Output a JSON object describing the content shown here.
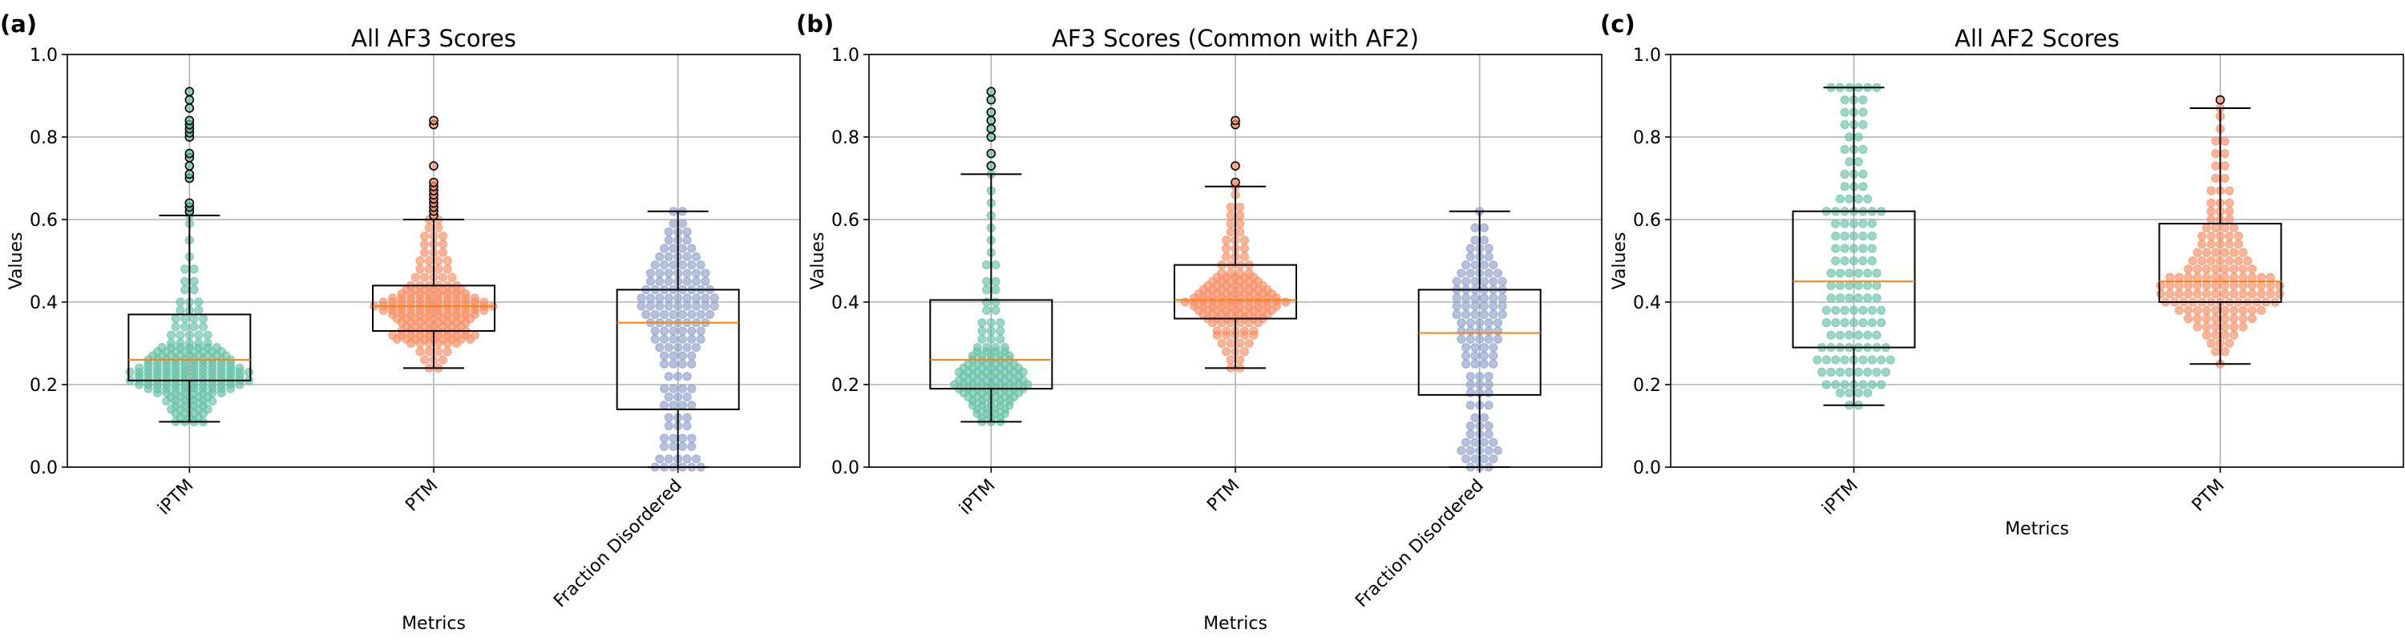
{
  "chart_data": [
    {
      "panel_label": "(a)",
      "type": "box+swarm",
      "title": "All AF3 Scores",
      "xlabel": "Metrics",
      "ylabel": "Values",
      "ylim": [
        0.0,
        1.0
      ],
      "yticks": [
        "0.0",
        "0.2",
        "0.4",
        "0.6",
        "0.8",
        "1.0"
      ],
      "grid": true,
      "xtick_rotation": -45,
      "categories": [
        "iPTM",
        "PTM",
        "Fraction Disordered"
      ],
      "series": [
        {
          "name": "iPTM",
          "color": "#66c2a5",
          "box": {
            "min": 0.11,
            "q1": 0.21,
            "median": 0.26,
            "q3": 0.37,
            "max": 0.61
          },
          "outliers": [
            0.62,
            0.63,
            0.64,
            0.7,
            0.71,
            0.73,
            0.75,
            0.76,
            0.8,
            0.81,
            0.82,
            0.83,
            0.84,
            0.87,
            0.89,
            0.91
          ],
          "points": [
            0.11,
            0.12,
            0.13,
            0.14,
            0.15,
            0.16,
            0.17,
            0.18,
            0.19,
            0.2,
            0.21,
            0.22,
            0.23,
            0.24,
            0.25,
            0.26,
            0.27,
            0.28,
            0.29,
            0.3,
            0.32,
            0.34,
            0.36,
            0.38,
            0.4,
            0.43,
            0.45,
            0.48,
            0.51,
            0.55,
            0.59,
            0.61
          ],
          "density": [
            4,
            3,
            4,
            5,
            4,
            6,
            5,
            8,
            10,
            12,
            14,
            12,
            14,
            12,
            10,
            10,
            9,
            8,
            7,
            5,
            5,
            4,
            4,
            3,
            3,
            2,
            2,
            2,
            1,
            1,
            1,
            1
          ]
        },
        {
          "name": "PTM",
          "color": "#fc8d62",
          "box": {
            "min": 0.24,
            "q1": 0.33,
            "median": 0.39,
            "q3": 0.44,
            "max": 0.6
          },
          "outliers": [
            0.61,
            0.62,
            0.63,
            0.64,
            0.65,
            0.66,
            0.67,
            0.68,
            0.69,
            0.73,
            0.83,
            0.84
          ],
          "points": [
            0.24,
            0.26,
            0.28,
            0.3,
            0.31,
            0.32,
            0.33,
            0.34,
            0.35,
            0.36,
            0.37,
            0.38,
            0.39,
            0.4,
            0.41,
            0.42,
            0.43,
            0.44,
            0.46,
            0.48,
            0.5,
            0.52,
            0.54,
            0.56,
            0.58,
            0.6
          ],
          "density": [
            2,
            3,
            4,
            6,
            9,
            10,
            8,
            7,
            8,
            9,
            10,
            12,
            14,
            12,
            10,
            8,
            7,
            6,
            5,
            4,
            4,
            3,
            3,
            3,
            2,
            2
          ]
        },
        {
          "name": "Fraction Disordered",
          "color": "#8da0cb",
          "box": {
            "min": 0.0,
            "q1": 0.14,
            "median": 0.35,
            "q3": 0.43,
            "max": 0.62
          },
          "outliers": [],
          "points": [
            0.0,
            0.02,
            0.05,
            0.07,
            0.1,
            0.12,
            0.15,
            0.17,
            0.19,
            0.22,
            0.25,
            0.27,
            0.29,
            0.31,
            0.33,
            0.35,
            0.37,
            0.39,
            0.41,
            0.43,
            0.45,
            0.47,
            0.49,
            0.51,
            0.53,
            0.55,
            0.57,
            0.59,
            0.62
          ],
          "density": [
            6,
            5,
            4,
            4,
            3,
            3,
            4,
            3,
            4,
            3,
            4,
            4,
            5,
            6,
            6,
            7,
            8,
            9,
            9,
            8,
            7,
            7,
            6,
            5,
            4,
            3,
            3,
            2,
            2
          ]
        }
      ]
    },
    {
      "panel_label": "(b)",
      "type": "box+swarm",
      "title": "AF3 Scores (Common with AF2)",
      "xlabel": "Metrics",
      "ylabel": "Values",
      "ylim": [
        0.0,
        1.0
      ],
      "yticks": [
        "0.0",
        "0.2",
        "0.4",
        "0.6",
        "0.8",
        "1.0"
      ],
      "grid": true,
      "xtick_rotation": -45,
      "categories": [
        "iPTM",
        "PTM",
        "Fraction Disordered"
      ],
      "series": [
        {
          "name": "iPTM",
          "color": "#66c2a5",
          "box": {
            "min": 0.11,
            "q1": 0.19,
            "median": 0.26,
            "q3": 0.405,
            "max": 0.71
          },
          "outliers": [
            0.73,
            0.76,
            0.8,
            0.82,
            0.84,
            0.86,
            0.89,
            0.91
          ],
          "points": [
            0.11,
            0.12,
            0.13,
            0.14,
            0.15,
            0.16,
            0.17,
            0.18,
            0.19,
            0.2,
            0.21,
            0.22,
            0.23,
            0.24,
            0.25,
            0.26,
            0.27,
            0.28,
            0.29,
            0.31,
            0.33,
            0.35,
            0.38,
            0.4,
            0.43,
            0.45,
            0.49,
            0.52,
            0.55,
            0.58,
            0.61,
            0.64,
            0.67,
            0.71
          ],
          "density": [
            3,
            3,
            4,
            4,
            5,
            5,
            6,
            7,
            8,
            9,
            8,
            7,
            8,
            7,
            6,
            5,
            5,
            4,
            4,
            3,
            3,
            3,
            2,
            2,
            2,
            2,
            2,
            1,
            1,
            1,
            1,
            1,
            1,
            1
          ]
        },
        {
          "name": "PTM",
          "color": "#fc8d62",
          "box": {
            "min": 0.24,
            "q1": 0.36,
            "median": 0.405,
            "q3": 0.49,
            "max": 0.68
          },
          "outliers": [
            0.69,
            0.73,
            0.83,
            0.84
          ],
          "points": [
            0.24,
            0.26,
            0.28,
            0.3,
            0.32,
            0.33,
            0.35,
            0.36,
            0.37,
            0.38,
            0.39,
            0.4,
            0.41,
            0.42,
            0.43,
            0.44,
            0.45,
            0.46,
            0.47,
            0.49,
            0.51,
            0.53,
            0.55,
            0.57,
            0.59,
            0.61,
            0.63,
            0.66,
            0.68
          ],
          "density": [
            2,
            2,
            3,
            4,
            5,
            5,
            6,
            7,
            8,
            9,
            10,
            12,
            10,
            9,
            8,
            7,
            6,
            5,
            4,
            4,
            3,
            3,
            3,
            2,
            2,
            2,
            2,
            1,
            1
          ]
        },
        {
          "name": "Fraction Disordered",
          "color": "#8da0cb",
          "box": {
            "min": 0.0,
            "q1": 0.175,
            "median": 0.325,
            "q3": 0.43,
            "max": 0.62
          },
          "outliers": [],
          "points": [
            0.0,
            0.02,
            0.04,
            0.06,
            0.08,
            0.1,
            0.12,
            0.15,
            0.18,
            0.2,
            0.22,
            0.25,
            0.27,
            0.29,
            0.31,
            0.33,
            0.35,
            0.37,
            0.39,
            0.41,
            0.43,
            0.45,
            0.47,
            0.49,
            0.51,
            0.53,
            0.55,
            0.58,
            0.62
          ],
          "density": [
            3,
            4,
            5,
            4,
            3,
            3,
            2,
            3,
            3,
            3,
            3,
            4,
            4,
            4,
            5,
            5,
            5,
            6,
            6,
            6,
            6,
            6,
            5,
            4,
            3,
            3,
            2,
            2,
            1
          ]
        }
      ]
    },
    {
      "panel_label": "(c)",
      "type": "box+swarm",
      "title": "All AF2 Scores",
      "xlabel": "Metrics",
      "ylabel": "Values",
      "ylim": [
        0.0,
        1.0
      ],
      "yticks": [
        "0.0",
        "0.2",
        "0.4",
        "0.6",
        "0.8",
        "1.0"
      ],
      "grid": true,
      "xtick_rotation": -45,
      "categories": [
        "iPTM",
        "PTM"
      ],
      "series": [
        {
          "name": "iPTM",
          "color": "#66c2a5",
          "box": {
            "min": 0.15,
            "q1": 0.29,
            "median": 0.45,
            "q3": 0.62,
            "max": 0.92
          },
          "outliers": [],
          "points": [
            0.15,
            0.18,
            0.2,
            0.23,
            0.26,
            0.29,
            0.32,
            0.35,
            0.38,
            0.41,
            0.44,
            0.47,
            0.5,
            0.53,
            0.56,
            0.59,
            0.62,
            0.65,
            0.68,
            0.71,
            0.74,
            0.77,
            0.8,
            0.83,
            0.86,
            0.89,
            0.92
          ],
          "density": [
            2,
            4,
            7,
            8,
            9,
            8,
            6,
            7,
            7,
            6,
            6,
            6,
            5,
            5,
            5,
            5,
            7,
            4,
            3,
            3,
            2,
            3,
            2,
            3,
            3,
            3,
            6
          ]
        },
        {
          "name": "PTM",
          "color": "#fc8d62",
          "box": {
            "min": 0.25,
            "q1": 0.4,
            "median": 0.45,
            "q3": 0.59,
            "max": 0.87
          },
          "outliers": [
            0.89
          ],
          "points": [
            0.25,
            0.28,
            0.3,
            0.32,
            0.34,
            0.36,
            0.38,
            0.4,
            0.42,
            0.44,
            0.46,
            0.48,
            0.5,
            0.52,
            0.54,
            0.56,
            0.58,
            0.6,
            0.62,
            0.64,
            0.67,
            0.7,
            0.73,
            0.76,
            0.79,
            0.82,
            0.85,
            0.87
          ],
          "density": [
            1,
            2,
            3,
            4,
            6,
            8,
            10,
            13,
            14,
            14,
            12,
            8,
            7,
            6,
            5,
            5,
            4,
            3,
            3,
            3,
            3,
            2,
            2,
            2,
            2,
            1,
            1,
            1
          ]
        }
      ]
    }
  ]
}
